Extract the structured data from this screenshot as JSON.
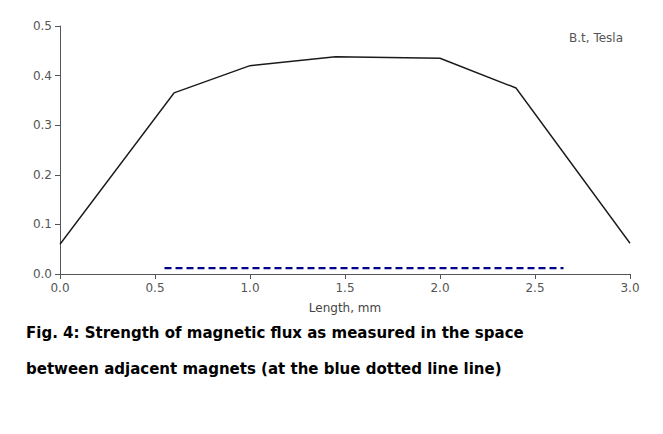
{
  "chart_data": {
    "type": "line",
    "xlabel": "Length, mm",
    "annotation": "B.t, Tesla",
    "caption": [
      "Fig. 4: Strength of magnetic flux as measured in the space",
      "between adjacent magnets (at the blue dotted line line)"
    ],
    "series": [
      {
        "x": [
          0,
          0.6,
          1.0,
          1.45,
          2.0,
          2.4,
          3.0
        ],
        "values": [
          0.06,
          0.365,
          0.42,
          0.438,
          0.435,
          0.375,
          0.062
        ],
        "color": "#1a1a1a",
        "line_style": "solid"
      },
      {
        "x": [
          0.55,
          2.65
        ],
        "values": [
          0.012,
          0.012
        ],
        "color": "#00008B",
        "line_style": "dashed"
      }
    ],
    "xlim": [
      0,
      3
    ],
    "ylim": [
      0,
      0.5
    ],
    "xticks": [
      {
        "value": 0,
        "label": "0.0"
      },
      {
        "value": 0.5,
        "label": "0.5"
      },
      {
        "value": 1,
        "label": "1.0"
      },
      {
        "value": 1.5,
        "label": "1.5"
      },
      {
        "value": 2,
        "label": "2.0"
      },
      {
        "value": 2.5,
        "label": "2.5"
      },
      {
        "value": 3,
        "label": "3.0"
      }
    ],
    "yticks": [
      {
        "value": 0,
        "label": "0.0"
      },
      {
        "value": 0.1,
        "label": "0.1"
      },
      {
        "value": 0.2,
        "label": "0.2"
      },
      {
        "value": 0.3,
        "label": "0.3"
      },
      {
        "value": 0.4,
        "label": "0.4"
      },
      {
        "value": 0.5,
        "label": "0.5"
      }
    ],
    "grid": false
  }
}
